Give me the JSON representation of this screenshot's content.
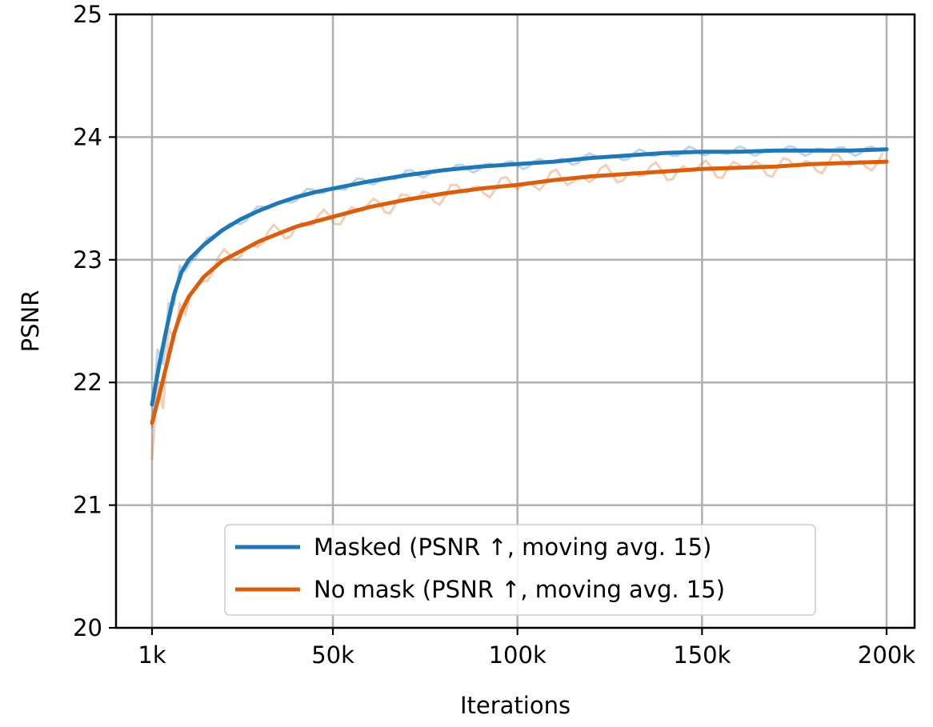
{
  "chart_data": {
    "type": "line",
    "title": "",
    "xlabel": "Iterations",
    "ylabel": "PSNR",
    "xlim": [
      1000,
      200000
    ],
    "ylim": [
      20,
      25
    ],
    "xticks": [
      1000,
      50000,
      100000,
      150000,
      200000
    ],
    "xtick_labels": [
      "1k",
      "50k",
      "100k",
      "150k",
      "200k"
    ],
    "yticks": [
      20,
      21,
      22,
      23,
      24,
      25
    ],
    "ytick_labels": [
      "20",
      "21",
      "22",
      "23",
      "24",
      "25"
    ],
    "grid": true,
    "legend_position": "bottom-center",
    "series": [
      {
        "name": "Masked (PSNR ↑, moving avg. 15)",
        "color": "#1f77b4",
        "x": [
          1000,
          3000,
          5000,
          7000,
          9000,
          11000,
          15000,
          20000,
          25000,
          30000,
          35000,
          40000,
          45000,
          50000,
          60000,
          70000,
          80000,
          90000,
          100000,
          110000,
          120000,
          130000,
          140000,
          150000,
          160000,
          170000,
          180000,
          190000,
          200000
        ],
        "y": [
          21.82,
          22.15,
          22.45,
          22.72,
          22.9,
          23.0,
          23.12,
          23.24,
          23.33,
          23.4,
          23.46,
          23.51,
          23.55,
          23.58,
          23.64,
          23.69,
          23.73,
          23.76,
          23.78,
          23.8,
          23.83,
          23.85,
          23.87,
          23.88,
          23.88,
          23.89,
          23.89,
          23.89,
          23.9
        ]
      },
      {
        "name": "No mask (PSNR ↑, moving avg. 15)",
        "color": "#d95f0e",
        "x": [
          1000,
          3000,
          5000,
          7000,
          9000,
          11000,
          15000,
          20000,
          25000,
          30000,
          35000,
          40000,
          45000,
          50000,
          60000,
          70000,
          80000,
          90000,
          100000,
          110000,
          120000,
          130000,
          140000,
          150000,
          160000,
          170000,
          180000,
          190000,
          200000
        ],
        "y": [
          21.67,
          21.9,
          22.15,
          22.4,
          22.58,
          22.7,
          22.86,
          22.99,
          23.07,
          23.15,
          23.21,
          23.27,
          23.31,
          23.35,
          23.43,
          23.49,
          23.54,
          23.58,
          23.61,
          23.65,
          23.68,
          23.7,
          23.72,
          23.74,
          23.75,
          23.76,
          23.78,
          23.79,
          23.8
        ]
      }
    ]
  }
}
